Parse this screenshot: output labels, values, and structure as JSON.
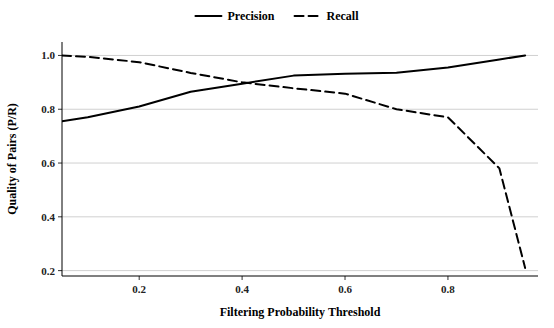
{
  "chart_data": {
    "type": "line",
    "x": [
      0.05,
      0.1,
      0.2,
      0.3,
      0.4,
      0.5,
      0.6,
      0.7,
      0.8,
      0.9,
      0.95
    ],
    "series": [
      {
        "name": "Precision",
        "color": "#000000",
        "line_style": "solid",
        "values": [
          0.755,
          0.77,
          0.81,
          0.865,
          0.895,
          0.925,
          0.932,
          0.936,
          0.955,
          0.985,
          1.0
        ]
      },
      {
        "name": "Recall",
        "color": "#000000",
        "line_style": "dashed",
        "values": [
          1.0,
          0.995,
          0.975,
          0.935,
          0.9,
          0.878,
          0.858,
          0.8,
          0.77,
          0.58,
          0.21
        ]
      }
    ],
    "x_label": "Filtering Probability Threshold",
    "y_label": "Quality of Pairs (P/R)",
    "xlim": [
      0.05,
      0.975
    ],
    "ylim": [
      0.18,
      1.05
    ],
    "xticks": [
      0.2,
      0.4,
      0.6,
      0.8
    ],
    "yticks": [
      0.2,
      0.4,
      0.6,
      0.8,
      {
        "value": 1.0,
        "label": "1.0"
      }
    ],
    "grid": true,
    "legend": "top"
  }
}
